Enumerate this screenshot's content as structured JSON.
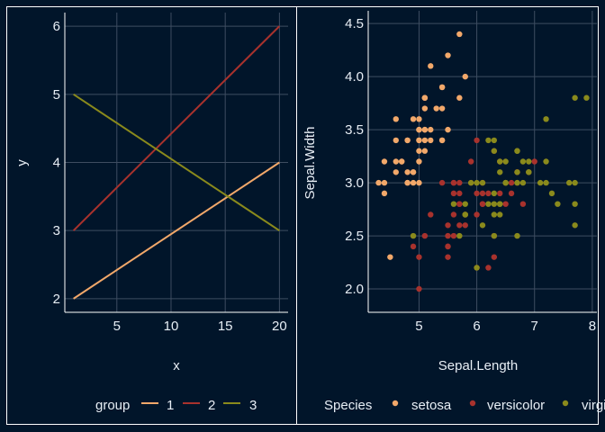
{
  "colors": {
    "background": "#01152a",
    "grid": "#3e4d61",
    "text": "#e8eef5",
    "series": [
      "#f2a86a",
      "#a8322d",
      "#8a8a1c"
    ]
  },
  "chart_data": [
    {
      "type": "line",
      "xlabel": "x",
      "ylabel": "y",
      "xlim": [
        0.2,
        20.8
      ],
      "ylim": [
        1.8,
        6.2
      ],
      "xticks": [
        5,
        10,
        15,
        20
      ],
      "yticks": [
        2,
        3,
        4,
        5,
        6
      ],
      "grid": true,
      "legend": {
        "title": "group",
        "placement": "bottom"
      },
      "series": [
        {
          "name": "1",
          "x": [
            1,
            20
          ],
          "y": [
            2,
            4
          ]
        },
        {
          "name": "2",
          "x": [
            1,
            20
          ],
          "y": [
            3,
            6
          ]
        },
        {
          "name": "3",
          "x": [
            1,
            20
          ],
          "y": [
            5,
            3
          ]
        }
      ]
    },
    {
      "type": "scatter",
      "xlabel": "Sepal.Length",
      "ylabel": "Sepal.Width",
      "xlim": [
        4.12,
        8.08
      ],
      "ylim": [
        1.78,
        4.62
      ],
      "xticks": [
        5,
        6,
        7,
        8
      ],
      "yticks": [
        "2.0",
        "2.5",
        "3.0",
        "3.5",
        "4.0",
        "4.5"
      ],
      "grid": true,
      "legend": {
        "title": "Species",
        "placement": "bottom"
      },
      "series": [
        {
          "name": "setosa",
          "points": [
            [
              5.1,
              3.5
            ],
            [
              4.9,
              3.0
            ],
            [
              4.7,
              3.2
            ],
            [
              4.6,
              3.1
            ],
            [
              5.0,
              3.6
            ],
            [
              5.4,
              3.9
            ],
            [
              4.6,
              3.4
            ],
            [
              5.0,
              3.4
            ],
            [
              4.4,
              2.9
            ],
            [
              4.9,
              3.1
            ],
            [
              5.4,
              3.7
            ],
            [
              4.8,
              3.4
            ],
            [
              4.8,
              3.0
            ],
            [
              4.3,
              3.0
            ],
            [
              5.8,
              4.0
            ],
            [
              5.7,
              4.4
            ],
            [
              5.4,
              3.9
            ],
            [
              5.1,
              3.5
            ],
            [
              5.7,
              3.8
            ],
            [
              5.1,
              3.8
            ],
            [
              5.4,
              3.4
            ],
            [
              5.1,
              3.7
            ],
            [
              4.6,
              3.6
            ],
            [
              5.1,
              3.3
            ],
            [
              4.8,
              3.4
            ],
            [
              5.0,
              3.0
            ],
            [
              5.0,
              3.4
            ],
            [
              5.2,
              3.5
            ],
            [
              5.2,
              3.4
            ],
            [
              4.7,
              3.2
            ],
            [
              4.8,
              3.1
            ],
            [
              5.4,
              3.4
            ],
            [
              5.2,
              4.1
            ],
            [
              5.5,
              4.2
            ],
            [
              4.9,
              3.1
            ],
            [
              5.0,
              3.2
            ],
            [
              5.5,
              3.5
            ],
            [
              4.9,
              3.6
            ],
            [
              4.4,
              3.0
            ],
            [
              5.1,
              3.4
            ],
            [
              5.0,
              3.5
            ],
            [
              4.5,
              2.3
            ],
            [
              4.4,
              3.2
            ],
            [
              5.0,
              3.5
            ],
            [
              5.1,
              3.8
            ],
            [
              4.8,
              3.0
            ],
            [
              5.1,
              3.8
            ],
            [
              4.6,
              3.2
            ],
            [
              5.3,
              3.7
            ],
            [
              5.0,
              3.3
            ]
          ]
        },
        {
          "name": "versicolor",
          "points": [
            [
              7.0,
              3.2
            ],
            [
              6.4,
              3.2
            ],
            [
              6.9,
              3.1
            ],
            [
              5.5,
              2.3
            ],
            [
              6.5,
              2.8
            ],
            [
              5.7,
              2.8
            ],
            [
              6.3,
              3.3
            ],
            [
              4.9,
              2.4
            ],
            [
              6.6,
              2.9
            ],
            [
              5.2,
              2.7
            ],
            [
              5.0,
              2.0
            ],
            [
              5.9,
              3.0
            ],
            [
              6.0,
              2.2
            ],
            [
              6.1,
              2.9
            ],
            [
              5.6,
              2.9
            ],
            [
              6.7,
              3.1
            ],
            [
              5.6,
              3.0
            ],
            [
              5.8,
              2.7
            ],
            [
              6.2,
              2.2
            ],
            [
              5.6,
              2.5
            ],
            [
              5.9,
              3.2
            ],
            [
              6.1,
              2.8
            ],
            [
              6.3,
              2.5
            ],
            [
              6.1,
              2.8
            ],
            [
              6.4,
              2.9
            ],
            [
              6.6,
              3.0
            ],
            [
              6.8,
              2.8
            ],
            [
              6.7,
              3.0
            ],
            [
              6.0,
              2.9
            ],
            [
              5.7,
              2.6
            ],
            [
              5.5,
              2.4
            ],
            [
              5.5,
              2.4
            ],
            [
              5.8,
              2.7
            ],
            [
              6.0,
              2.7
            ],
            [
              5.4,
              3.0
            ],
            [
              6.0,
              3.4
            ],
            [
              6.7,
              3.1
            ],
            [
              6.3,
              2.3
            ],
            [
              5.6,
              3.0
            ],
            [
              5.5,
              2.5
            ],
            [
              5.5,
              2.6
            ],
            [
              6.1,
              3.0
            ],
            [
              5.8,
              2.6
            ],
            [
              5.0,
              2.3
            ],
            [
              5.6,
              2.7
            ],
            [
              5.7,
              3.0
            ],
            [
              5.7,
              2.9
            ],
            [
              6.2,
              2.9
            ],
            [
              5.1,
              2.5
            ],
            [
              5.7,
              2.8
            ]
          ]
        },
        {
          "name": "virginica",
          "points": [
            [
              6.3,
              3.3
            ],
            [
              5.8,
              2.7
            ],
            [
              7.1,
              3.0
            ],
            [
              6.3,
              2.9
            ],
            [
              6.5,
              3.0
            ],
            [
              7.6,
              3.0
            ],
            [
              4.9,
              2.5
            ],
            [
              7.3,
              2.9
            ],
            [
              6.7,
              2.5
            ],
            [
              7.2,
              3.6
            ],
            [
              6.5,
              3.2
            ],
            [
              6.4,
              2.7
            ],
            [
              6.8,
              3.0
            ],
            [
              5.7,
              2.5
            ],
            [
              5.8,
              2.8
            ],
            [
              6.4,
              3.2
            ],
            [
              6.5,
              3.0
            ],
            [
              7.7,
              3.8
            ],
            [
              7.7,
              2.6
            ],
            [
              6.0,
              2.2
            ],
            [
              6.9,
              3.2
            ],
            [
              5.6,
              2.8
            ],
            [
              7.7,
              2.8
            ],
            [
              6.3,
              2.7
            ],
            [
              6.7,
              3.3
            ],
            [
              7.2,
              3.2
            ],
            [
              6.2,
              2.8
            ],
            [
              6.1,
              3.0
            ],
            [
              6.4,
              2.8
            ],
            [
              7.2,
              3.0
            ],
            [
              7.4,
              2.8
            ],
            [
              7.9,
              3.8
            ],
            [
              6.4,
              2.8
            ],
            [
              6.3,
              2.8
            ],
            [
              6.1,
              2.6
            ],
            [
              7.7,
              3.0
            ],
            [
              6.3,
              3.4
            ],
            [
              6.4,
              3.1
            ],
            [
              6.0,
              3.0
            ],
            [
              6.9,
              3.1
            ],
            [
              6.7,
              3.1
            ],
            [
              6.9,
              3.1
            ],
            [
              5.8,
              2.7
            ],
            [
              6.8,
              3.2
            ],
            [
              6.7,
              3.3
            ],
            [
              6.7,
              3.0
            ],
            [
              6.3,
              2.5
            ],
            [
              6.5,
              3.0
            ],
            [
              6.2,
              3.4
            ],
            [
              5.9,
              3.0
            ]
          ]
        }
      ]
    }
  ]
}
